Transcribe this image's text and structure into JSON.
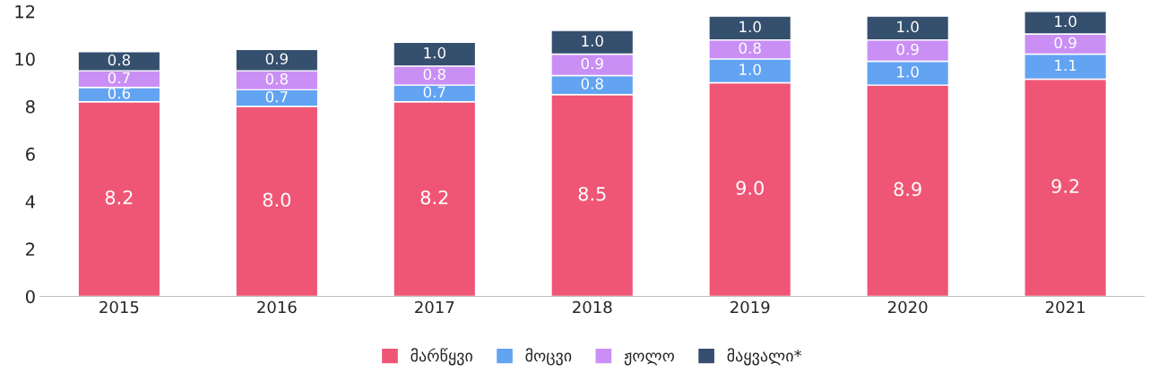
{
  "chart_data": {
    "type": "bar",
    "stacked": true,
    "categories": [
      "2015",
      "2016",
      "2017",
      "2018",
      "2019",
      "2020",
      "2021"
    ],
    "series": [
      {
        "name": "მარწყვი",
        "color": "#ef5675",
        "values": [
          8.2,
          8.0,
          8.2,
          8.5,
          9.0,
          8.9,
          9.15
        ],
        "value_labels": [
          "8.2",
          "8.0",
          "8.2",
          "8.5",
          "9.0",
          "8.9",
          "9.2"
        ]
      },
      {
        "name": "მოცვი",
        "color": "#62a3f2",
        "values": [
          0.6,
          0.7,
          0.7,
          0.8,
          1.0,
          1.0,
          1.05
        ],
        "value_labels": [
          "0.6",
          "0.7",
          "0.7",
          "0.8",
          "1.0",
          "1.0",
          "1.1"
        ]
      },
      {
        "name": "ჟოლო",
        "color": "#c98ff5",
        "values": [
          0.7,
          0.8,
          0.8,
          0.9,
          0.8,
          0.9,
          0.85
        ],
        "value_labels": [
          "0.7",
          "0.8",
          "0.8",
          "0.9",
          "0.8",
          "0.9",
          "0.9"
        ]
      },
      {
        "name": "მაყვალი*",
        "color": "#354f6e",
        "values": [
          0.8,
          0.9,
          1.0,
          1.0,
          1.0,
          1.0,
          0.95
        ],
        "value_labels": [
          "0.8",
          "0.9",
          "1.0",
          "1.0",
          "1.0",
          "1.0",
          "1.0"
        ]
      }
    ],
    "ylim": [
      0,
      12
    ],
    "yticks": [
      0,
      2,
      4,
      6,
      8,
      10,
      12
    ],
    "grid": false,
    "legend": "bottom"
  }
}
